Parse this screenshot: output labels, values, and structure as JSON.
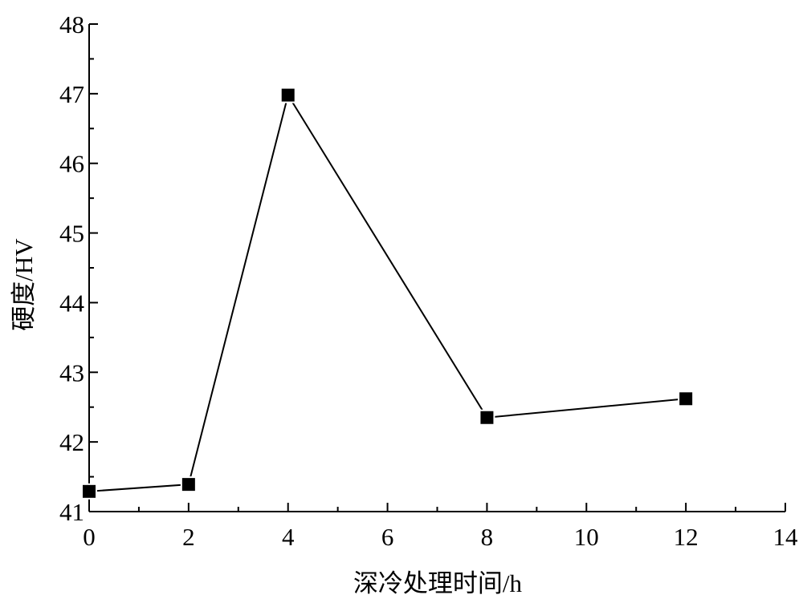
{
  "chart_data": {
    "type": "line",
    "x_label": "深冷处理时间/h",
    "y_label": "硬度/HV",
    "series": [
      {
        "color": "#000000",
        "x": [
          0,
          2,
          4,
          8,
          12
        ],
        "values": [
          41.29,
          41.39,
          46.98,
          42.35,
          42.62
        ]
      }
    ],
    "xlim": [
      0,
      14
    ],
    "xticks": [
      0,
      2,
      4,
      6,
      8,
      10,
      12,
      14
    ],
    "ylim": [
      41,
      48
    ],
    "yticks": [
      41,
      42,
      43,
      44,
      45,
      46,
      47,
      48
    ],
    "grid": false
  }
}
